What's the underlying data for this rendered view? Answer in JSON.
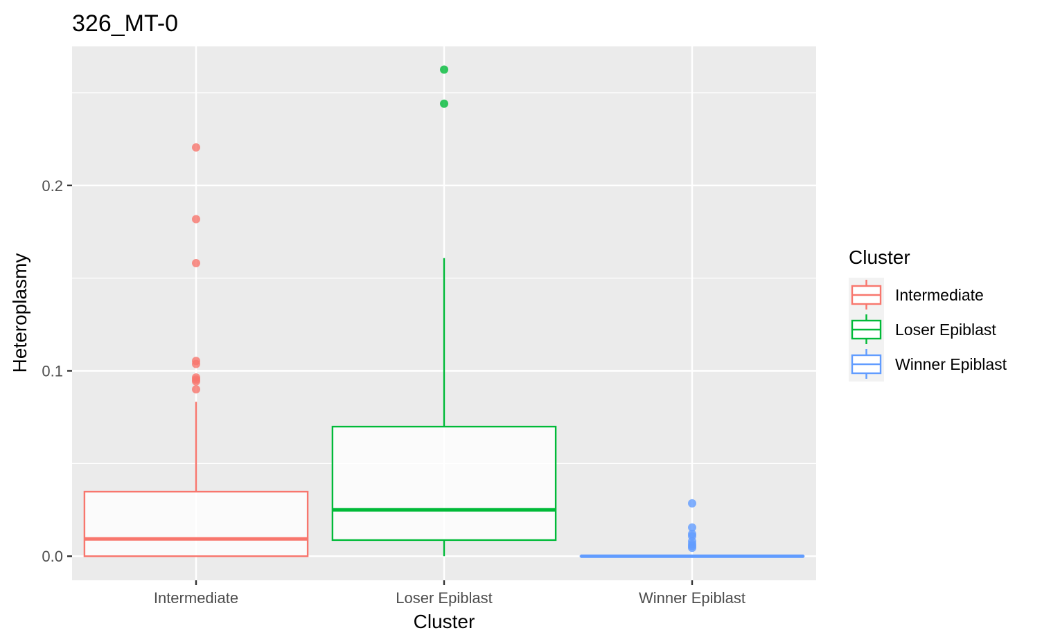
{
  "chart_data": {
    "type": "boxplot",
    "title": "326_MT-0",
    "xlabel": "Cluster",
    "ylabel": "Heteroplasmy",
    "ylim": [
      -0.013,
      0.275
    ],
    "yticks": [
      0.0,
      0.1,
      0.2
    ],
    "ytick_labels": [
      "0.0",
      "0.1",
      "0.2"
    ],
    "grid": true,
    "categories": [
      "Intermediate",
      "Loser Epiblast",
      "Winner Epiblast"
    ],
    "colors": [
      "#F8766D",
      "#00BA38",
      "#619CFF"
    ],
    "legend": {
      "title": "Cluster",
      "position": "right",
      "entries": [
        "Intermediate",
        "Loser Epiblast",
        "Winner Epiblast"
      ]
    },
    "boxes": [
      {
        "name": "Intermediate",
        "lower_whisker": 0.0,
        "q1": 0.0,
        "median": 0.0093,
        "q3": 0.0348,
        "upper_whisker": 0.0833,
        "outliers": [
          0.2205,
          0.1818,
          0.1581,
          0.1053,
          0.1037,
          0.0964,
          0.0953,
          0.0943,
          0.09
        ]
      },
      {
        "name": "Loser Epiblast",
        "lower_whisker": 0.0,
        "q1": 0.0087,
        "median": 0.025,
        "q3": 0.0699,
        "upper_whisker": 0.1608,
        "outliers": [
          0.2625,
          0.2441
        ]
      },
      {
        "name": "Winner Epiblast",
        "lower_whisker": 0.0,
        "q1": 0.0,
        "median": 0.0,
        "q3": 0.0,
        "upper_whisker": 0.0,
        "outliers": [
          0.0285,
          0.0155,
          0.012,
          0.0108,
          0.008,
          0.0065,
          0.0055,
          0.0045
        ]
      }
    ]
  }
}
